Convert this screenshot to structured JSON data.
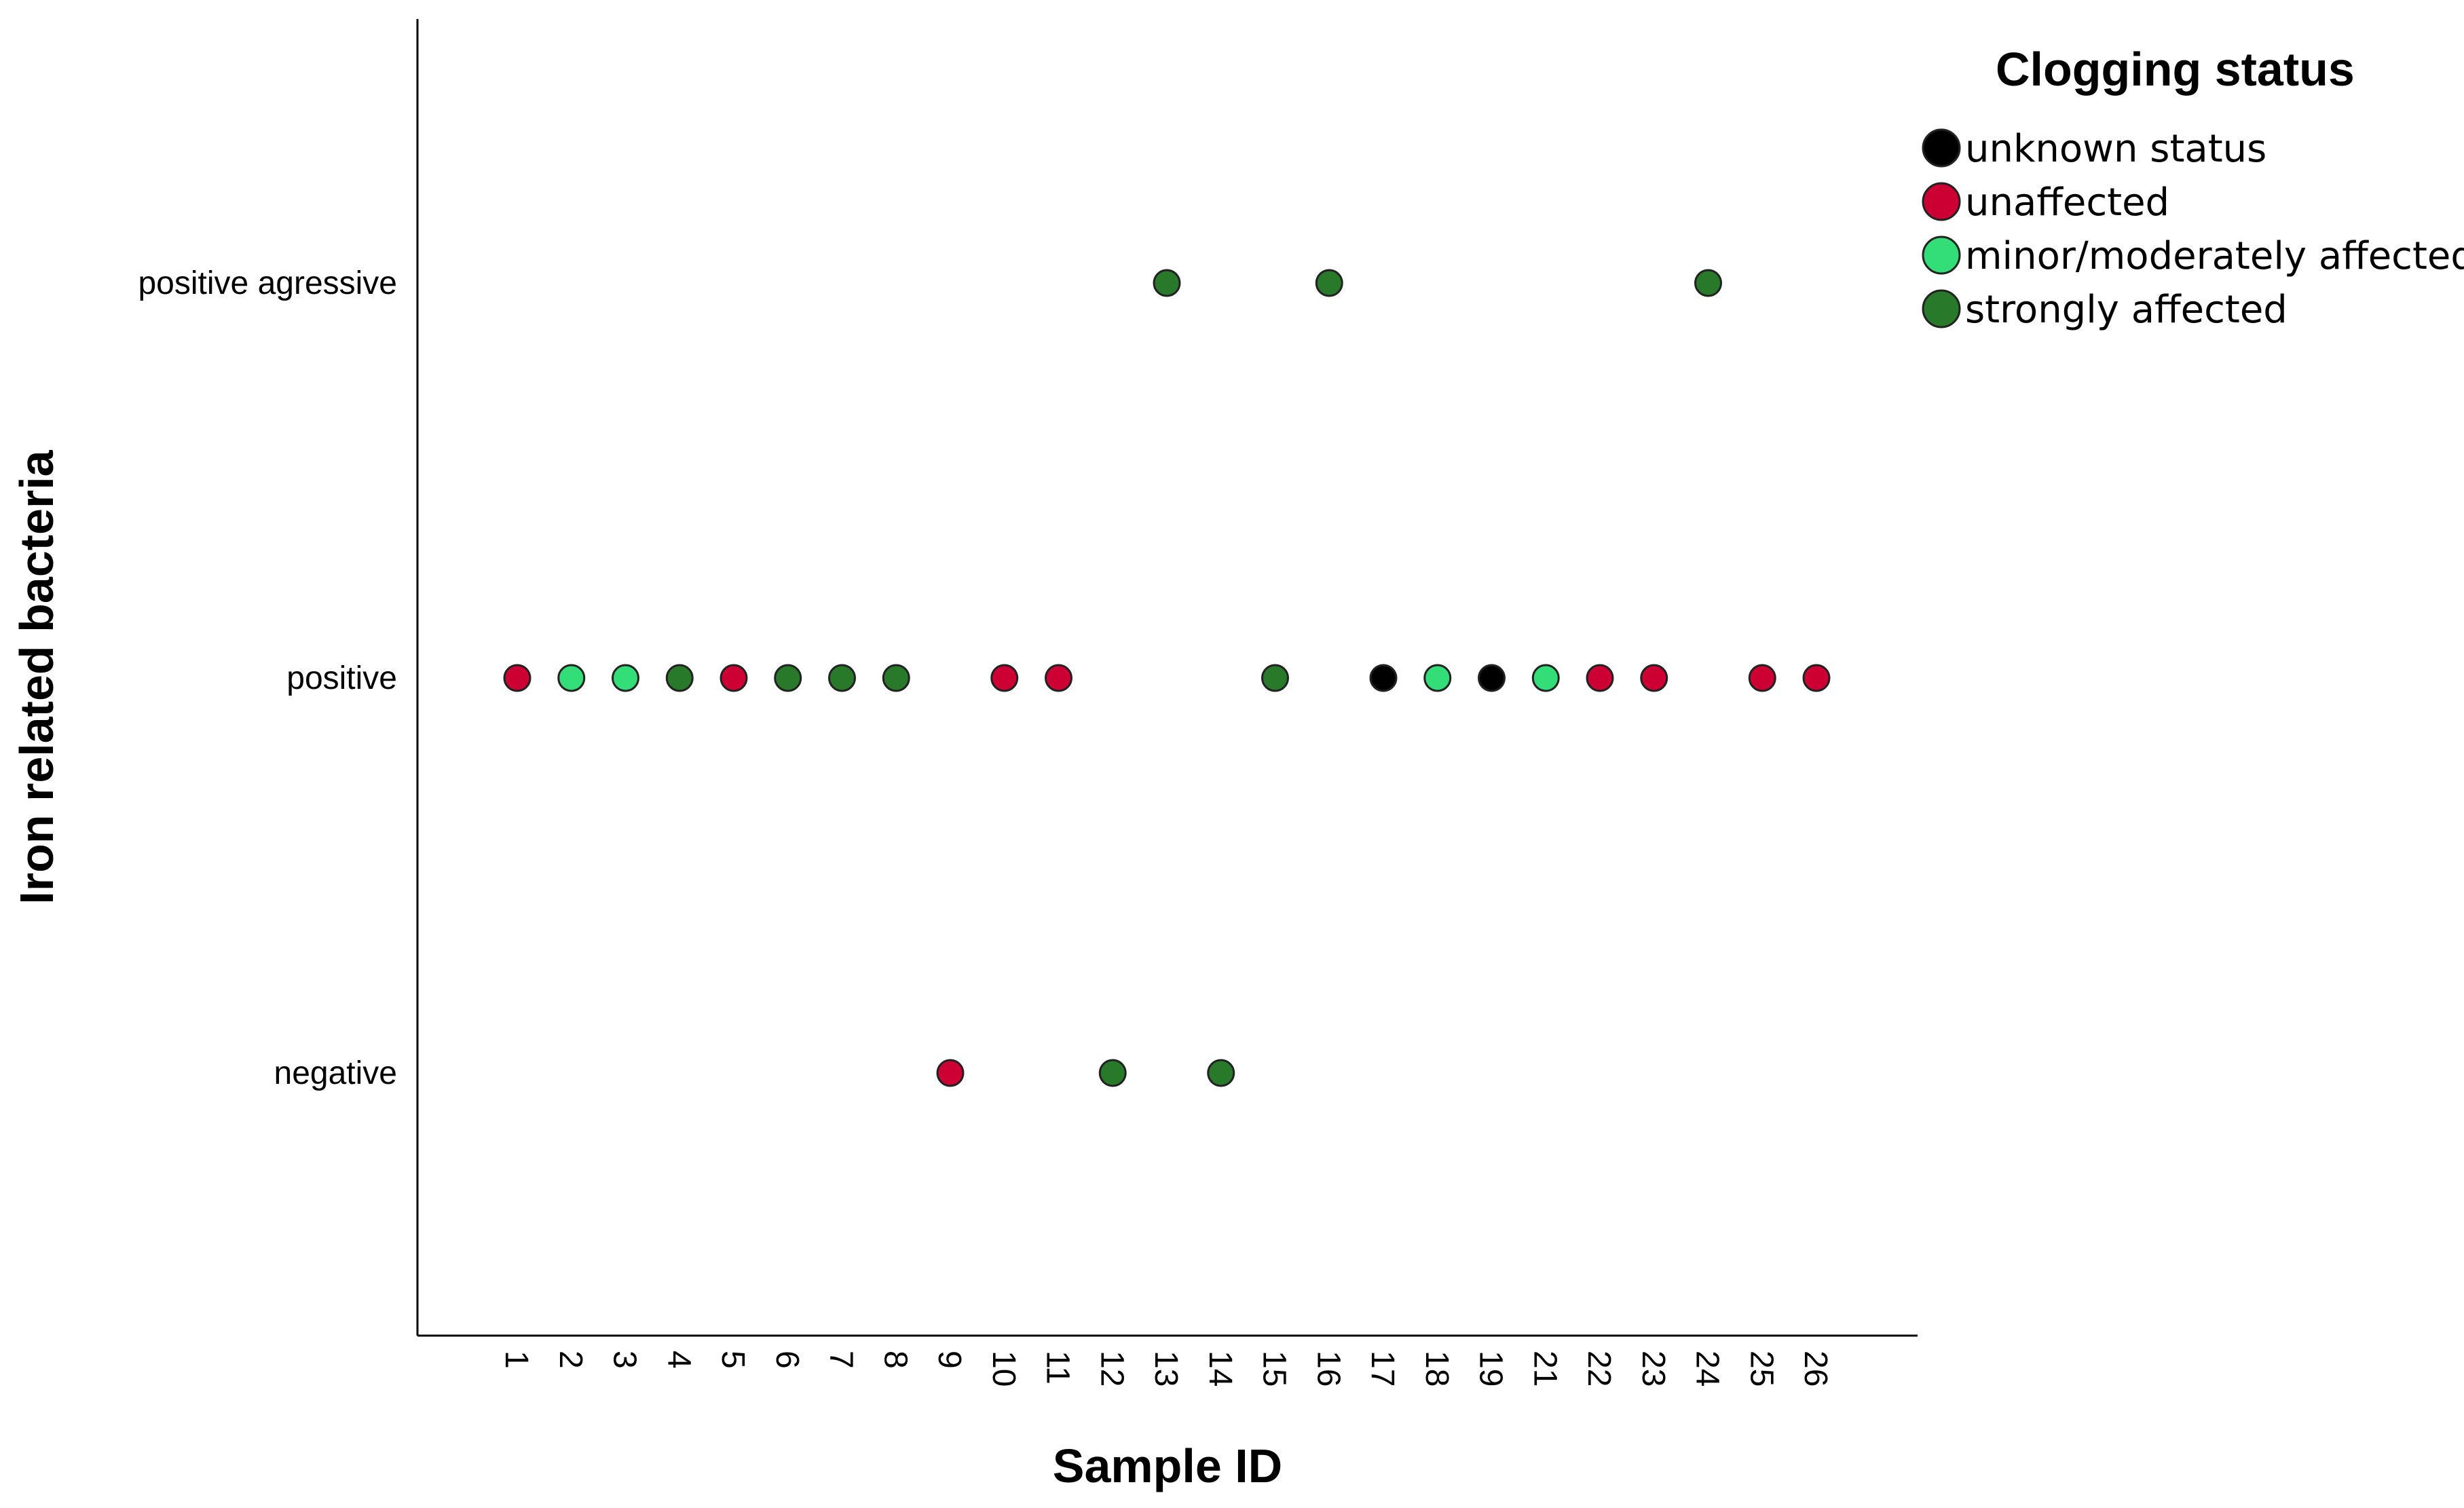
{
  "chart_data": {
    "type": "scatter",
    "title": "",
    "xlabel": "Sample ID",
    "ylabel": "Iron related bacteria",
    "x_categories": [
      "1",
      "2",
      "3",
      "4",
      "5",
      "6",
      "7",
      "8",
      "9",
      "10",
      "11",
      "12",
      "13",
      "14",
      "15",
      "16",
      "17",
      "18",
      "19",
      "21",
      "22",
      "23",
      "24",
      "25",
      "26"
    ],
    "y_categories": [
      "negative",
      "positive",
      "positive agressive"
    ],
    "legend": {
      "title": "Clogging status",
      "position": "top-right",
      "entries": [
        {
          "name": "unknown status",
          "color": "#000000"
        },
        {
          "name": "unaffected",
          "color": "#cc0033"
        },
        {
          "name": "minor/moderately affected",
          "color": "#33dd77"
        },
        {
          "name": "strongly affected",
          "color": "#287a2a"
        }
      ]
    },
    "points": [
      {
        "x": "1",
        "y": "positive",
        "status": "unaffected"
      },
      {
        "x": "2",
        "y": "positive",
        "status": "minor/moderately affected"
      },
      {
        "x": "3",
        "y": "positive",
        "status": "minor/moderately affected"
      },
      {
        "x": "4",
        "y": "positive",
        "status": "strongly affected"
      },
      {
        "x": "5",
        "y": "positive",
        "status": "unaffected"
      },
      {
        "x": "6",
        "y": "positive",
        "status": "strongly affected"
      },
      {
        "x": "7",
        "y": "positive",
        "status": "strongly affected"
      },
      {
        "x": "8",
        "y": "positive",
        "status": "strongly affected"
      },
      {
        "x": "9",
        "y": "negative",
        "status": "unaffected"
      },
      {
        "x": "10",
        "y": "positive",
        "status": "unaffected"
      },
      {
        "x": "11",
        "y": "positive",
        "status": "unaffected"
      },
      {
        "x": "12",
        "y": "negative",
        "status": "strongly affected"
      },
      {
        "x": "13",
        "y": "positive agressive",
        "status": "strongly affected"
      },
      {
        "x": "14",
        "y": "negative",
        "status": "strongly affected"
      },
      {
        "x": "15",
        "y": "positive",
        "status": "strongly affected"
      },
      {
        "x": "16",
        "y": "positive agressive",
        "status": "strongly affected"
      },
      {
        "x": "17",
        "y": "positive",
        "status": "unknown status"
      },
      {
        "x": "18",
        "y": "positive",
        "status": "minor/moderately affected"
      },
      {
        "x": "19",
        "y": "positive",
        "status": "unknown status"
      },
      {
        "x": "21",
        "y": "positive",
        "status": "minor/moderately affected"
      },
      {
        "x": "22",
        "y": "positive",
        "status": "unaffected"
      },
      {
        "x": "23",
        "y": "positive",
        "status": "unaffected"
      },
      {
        "x": "24",
        "y": "positive agressive",
        "status": "strongly affected"
      },
      {
        "x": "25",
        "y": "positive",
        "status": "unaffected"
      },
      {
        "x": "26",
        "y": "positive",
        "status": "unaffected"
      }
    ],
    "grid": false
  }
}
